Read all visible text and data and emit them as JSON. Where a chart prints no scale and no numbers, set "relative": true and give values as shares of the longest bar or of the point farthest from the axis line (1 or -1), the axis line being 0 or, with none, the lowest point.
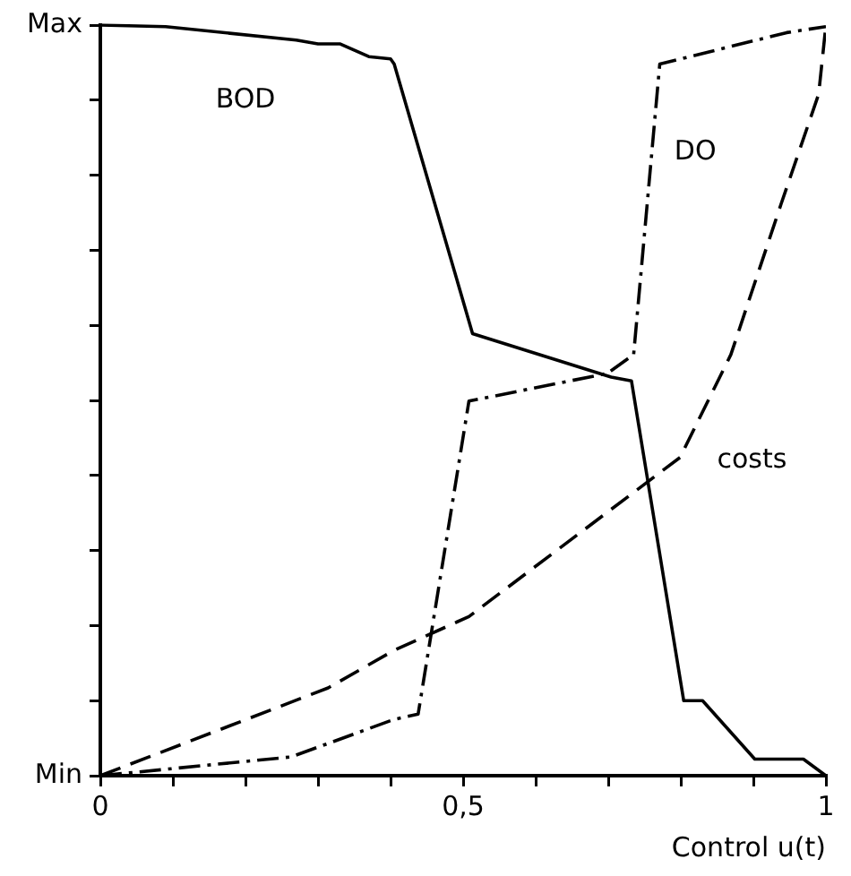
{
  "chart_data": {
    "type": "line",
    "xlabel": "Control u(t)",
    "xlim": [
      0,
      1
    ],
    "relative": true,
    "annotations": [
      "Max",
      "Min"
    ],
    "xticks": [
      0,
      {
        "value": 0.1,
        "label": null
      },
      {
        "value": 0.2,
        "label": null
      },
      {
        "value": 0.3,
        "label": null
      },
      {
        "value": 0.4,
        "label": null
      },
      {
        "value": 0.5,
        "label": "0,5"
      },
      {
        "value": 0.6,
        "label": null
      },
      {
        "value": 0.7,
        "label": null
      },
      {
        "value": 0.8,
        "label": null
      },
      {
        "value": 0.9,
        "label": null
      },
      1
    ],
    "grid": false,
    "legend": false,
    "marker": "none",
    "series": [
      {
        "name": "BOD",
        "color": "#000000",
        "line_style": "solid",
        "x": [
          0,
          0.09,
          0.27,
          0.3,
          0.33,
          0.37,
          0.4,
          0.405,
          0.513,
          0.704,
          0.732,
          0.804,
          0.83,
          0.902,
          0.969,
          1
        ],
        "values": [
          1,
          0.998,
          0.98,
          0.975,
          0.975,
          0.958,
          0.955,
          0.948,
          0.589,
          0.531,
          0.526,
          0.1,
          0.1,
          0.022,
          0.022,
          0
        ]
      },
      {
        "name": "DO",
        "color": "#000000",
        "line_style": "dashdot",
        "x": [
          0,
          0.263,
          0.405,
          0.438,
          0.508,
          0.699,
          0.735,
          0.771,
          0.946,
          1
        ],
        "values": [
          0,
          0.025,
          0.075,
          0.082,
          0.499,
          0.536,
          0.561,
          0.948,
          0.99,
          0.998
        ]
      },
      {
        "name": "costs",
        "color": "#000000",
        "line_style": "dashed",
        "x": [
          0,
          0.314,
          0.405,
          0.508,
          0.799,
          0.869,
          0.938,
          0.99,
          1
        ],
        "values": [
          0,
          0.117,
          0.167,
          0.212,
          0.424,
          0.561,
          0.761,
          0.908,
          1
        ]
      }
    ]
  }
}
